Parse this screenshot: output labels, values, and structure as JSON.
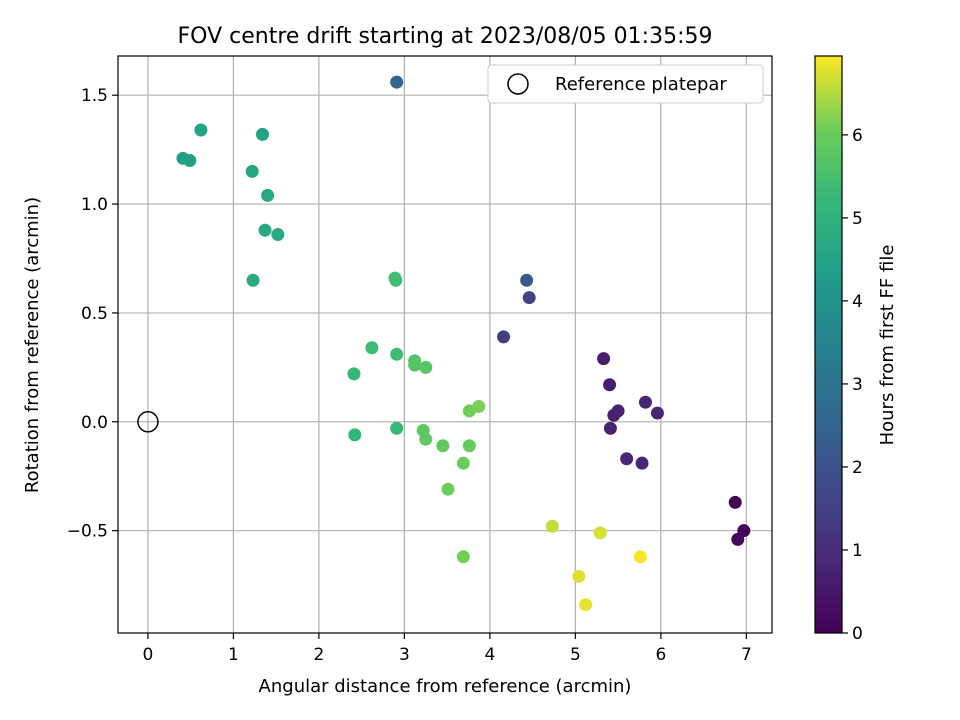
{
  "chart_data": {
    "type": "scatter",
    "title": "FOV centre drift starting at 2023/08/05 01:35:59",
    "xlabel": "Angular distance from reference (arcmin)",
    "ylabel": "Rotation from reference (arcmin)",
    "xlim": [
      -0.35,
      7.3
    ],
    "ylim": [
      -0.97,
      1.68
    ],
    "xticks": [
      0,
      1,
      2,
      3,
      4,
      5,
      6,
      7
    ],
    "xtick_labels": [
      "0",
      "1",
      "2",
      "3",
      "4",
      "5",
      "6",
      "7"
    ],
    "yticks": [
      -0.5,
      0.0,
      0.5,
      1.0,
      1.5
    ],
    "ytick_labels": [
      "−0.5",
      "0.0",
      "0.5",
      "1.0",
      "1.5"
    ],
    "grid": true,
    "colormap": "viridis",
    "colorbar": {
      "label": "Hours from first FF file",
      "min": 0,
      "max": 6.95,
      "ticks": [
        0,
        1,
        2,
        3,
        4,
        5,
        6
      ],
      "tick_labels": [
        "0",
        "1",
        "2",
        "3",
        "4",
        "5",
        "6"
      ]
    },
    "legend": {
      "placement": "top-right",
      "entries": [
        {
          "label": "Reference platepar",
          "marker": "open-circle"
        }
      ]
    },
    "reference_point": {
      "x": 0,
      "y": 0
    },
    "points": [
      {
        "x": 6.87,
        "y": -0.37,
        "t": 0.05
      },
      {
        "x": 6.97,
        "y": -0.5,
        "t": 0.1
      },
      {
        "x": 6.9,
        "y": -0.54,
        "t": 0.15
      },
      {
        "x": 5.33,
        "y": 0.29,
        "t": 0.6
      },
      {
        "x": 5.4,
        "y": 0.17,
        "t": 0.65
      },
      {
        "x": 5.45,
        "y": 0.03,
        "t": 0.7
      },
      {
        "x": 5.5,
        "y": 0.05,
        "t": 0.72
      },
      {
        "x": 5.41,
        "y": -0.03,
        "t": 0.75
      },
      {
        "x": 5.6,
        "y": -0.17,
        "t": 0.8
      },
      {
        "x": 5.78,
        "y": -0.19,
        "t": 0.85
      },
      {
        "x": 5.82,
        "y": 0.09,
        "t": 0.82
      },
      {
        "x": 5.96,
        "y": 0.04,
        "t": 0.8
      },
      {
        "x": 4.16,
        "y": 0.39,
        "t": 1.5
      },
      {
        "x": 4.46,
        "y": 0.57,
        "t": 1.6
      },
      {
        "x": 4.43,
        "y": 0.65,
        "t": 2.2
      },
      {
        "x": 2.91,
        "y": 1.56,
        "t": 2.5
      },
      {
        "x": 0.41,
        "y": 1.21,
        "t": 4.4
      },
      {
        "x": 0.49,
        "y": 1.2,
        "t": 4.45
      },
      {
        "x": 0.62,
        "y": 1.34,
        "t": 4.5
      },
      {
        "x": 1.34,
        "y": 1.32,
        "t": 4.55
      },
      {
        "x": 1.22,
        "y": 1.15,
        "t": 4.6
      },
      {
        "x": 1.4,
        "y": 1.04,
        "t": 4.65
      },
      {
        "x": 1.37,
        "y": 0.88,
        "t": 4.7
      },
      {
        "x": 1.52,
        "y": 0.86,
        "t": 4.72
      },
      {
        "x": 1.23,
        "y": 0.65,
        "t": 4.75
      },
      {
        "x": 2.89,
        "y": 0.66,
        "t": 5.4
      },
      {
        "x": 2.9,
        "y": 0.65,
        "t": 5.4
      },
      {
        "x": 2.62,
        "y": 0.34,
        "t": 5.3
      },
      {
        "x": 2.91,
        "y": 0.31,
        "t": 5.35
      },
      {
        "x": 2.41,
        "y": 0.22,
        "t": 5.2
      },
      {
        "x": 3.12,
        "y": 0.28,
        "t": 5.7
      },
      {
        "x": 3.12,
        "y": 0.26,
        "t": 5.7
      },
      {
        "x": 3.25,
        "y": 0.25,
        "t": 5.75
      },
      {
        "x": 2.42,
        "y": -0.06,
        "t": 5.1
      },
      {
        "x": 2.91,
        "y": -0.03,
        "t": 5.25
      },
      {
        "x": 3.22,
        "y": -0.04,
        "t": 5.8
      },
      {
        "x": 3.25,
        "y": -0.08,
        "t": 5.85
      },
      {
        "x": 3.45,
        "y": -0.11,
        "t": 5.9
      },
      {
        "x": 3.76,
        "y": -0.11,
        "t": 5.95
      },
      {
        "x": 3.69,
        "y": -0.19,
        "t": 6.0
      },
      {
        "x": 3.76,
        "y": 0.05,
        "t": 6.1
      },
      {
        "x": 3.87,
        "y": 0.07,
        "t": 6.15
      },
      {
        "x": 3.51,
        "y": -0.31,
        "t": 6.05
      },
      {
        "x": 3.69,
        "y": -0.62,
        "t": 6.1
      },
      {
        "x": 4.73,
        "y": -0.48,
        "t": 6.6
      },
      {
        "x": 5.29,
        "y": -0.51,
        "t": 6.7
      },
      {
        "x": 5.04,
        "y": -0.71,
        "t": 6.75
      },
      {
        "x": 5.12,
        "y": -0.84,
        "t": 6.8
      },
      {
        "x": 5.76,
        "y": -0.62,
        "t": 6.9
      }
    ]
  }
}
